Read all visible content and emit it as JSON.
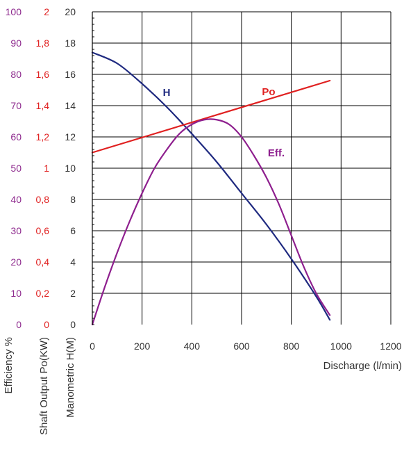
{
  "chart_data": {
    "type": "line",
    "x": {
      "label": "Discharge (l/min)",
      "range": [
        0,
        1200
      ],
      "ticks": [
        "0",
        "200",
        "400",
        "600",
        "800",
        "1000",
        "1200"
      ]
    },
    "y_axes": [
      {
        "id": "eff",
        "label": "Efficiency %",
        "range": [
          0,
          100
        ],
        "ticks": [
          "0",
          "10",
          "20",
          "30",
          "40",
          "50",
          "60",
          "70",
          "80",
          "90",
          "100"
        ],
        "color": "#8e2a8e"
      },
      {
        "id": "po",
        "label": "Shaft Output Po(KW)",
        "range": [
          0,
          2
        ],
        "ticks": [
          "0",
          "0,2",
          "0,4",
          "0,6",
          "0,8",
          "1",
          "1,2",
          "1,4",
          "1,6",
          "1,8",
          "2"
        ],
        "color": "#e02020"
      },
      {
        "id": "h",
        "label": "Manometric H(M)",
        "range": [
          0,
          20
        ],
        "ticks": [
          "0",
          "2",
          "4",
          "6",
          "8",
          "10",
          "12",
          "14",
          "16",
          "18",
          "20"
        ],
        "color": "#333333"
      }
    ],
    "grid": true,
    "series": [
      {
        "name": "H",
        "axis": "h",
        "color": "#1f2a80",
        "x": [
          0,
          100,
          200,
          300,
          400,
          500,
          600,
          700,
          800,
          900,
          955
        ],
        "y": [
          17.4,
          16.7,
          15.4,
          13.9,
          12.2,
          10.4,
          8.4,
          6.4,
          4.2,
          1.8,
          0.3
        ]
      },
      {
        "name": "Po",
        "axis": "po",
        "color": "#e02020",
        "x": [
          0,
          955
        ],
        "y": [
          1.1,
          1.56
        ]
      },
      {
        "name": "Eff.",
        "axis": "eff",
        "color": "#8e1f8e",
        "x": [
          0,
          50,
          100,
          150,
          200,
          250,
          300,
          350,
          400,
          450,
          500,
          550,
          600,
          650,
          700,
          750,
          800,
          850,
          900,
          955
        ],
        "y": [
          0,
          12,
          23,
          33,
          42,
          50,
          56,
          61,
          64,
          65.5,
          65.5,
          64,
          60,
          54,
          47,
          38.5,
          28.5,
          18.5,
          10,
          3
        ]
      }
    ]
  }
}
